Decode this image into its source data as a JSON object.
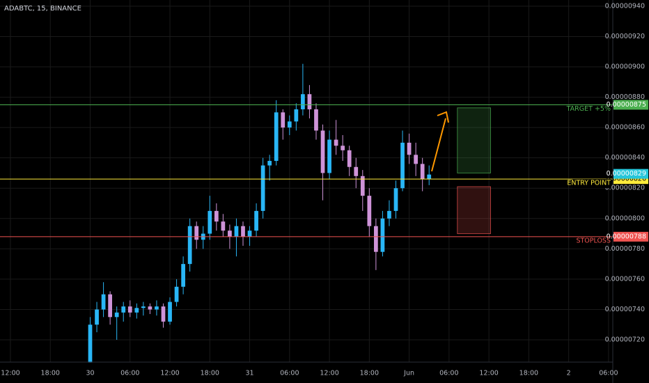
{
  "chart_data": {
    "type": "candlestick",
    "title": "ADABTC, 15, BINANCE",
    "up_color": "#29b6f6",
    "down_color": "#ce93d8",
    "grid": true,
    "xlim": [
      -13.57,
      78.64
    ],
    "ylim": [
      7.053e-06,
      9.441e-06
    ],
    "xticks": [
      {
        "value": -12,
        "label": "12:00"
      },
      {
        "value": -6,
        "label": "18:00"
      },
      {
        "value": 0,
        "label": "30"
      },
      {
        "value": 6,
        "label": "06:00"
      },
      {
        "value": 12,
        "label": "12:00"
      },
      {
        "value": 18,
        "label": "18:00"
      },
      {
        "value": 24,
        "label": "31"
      },
      {
        "value": 30,
        "label": "06:00"
      },
      {
        "value": 36,
        "label": "12:00"
      },
      {
        "value": 42,
        "label": "18:00"
      },
      {
        "value": 48,
        "label": "Jun"
      },
      {
        "value": 54,
        "label": "06:00"
      },
      {
        "value": 60,
        "label": "12:00"
      },
      {
        "value": 66,
        "label": "18:00"
      },
      {
        "value": 72,
        "label": "2"
      },
      {
        "value": 78,
        "label": "06:00"
      }
    ],
    "yticks": [
      {
        "value": 7.2e-06,
        "label": "0.00000720"
      },
      {
        "value": 7.4e-06,
        "label": "0.00000740"
      },
      {
        "value": 7.6e-06,
        "label": "0.00000760"
      },
      {
        "value": 7.8e-06,
        "label": "0.00000780"
      },
      {
        "value": 8e-06,
        "label": "0.00000800"
      },
      {
        "value": 8.2e-06,
        "label": "0.00000820"
      },
      {
        "value": 8.4e-06,
        "label": "0.00000840"
      },
      {
        "value": 8.6e-06,
        "label": "0.00000860"
      },
      {
        "value": 8.8e-06,
        "label": "0.00000880"
      },
      {
        "value": 9e-06,
        "label": "0.00000900"
      },
      {
        "value": 9.2e-06,
        "label": "0.00000920"
      },
      {
        "value": 9.4e-06,
        "label": "0.00000940"
      }
    ],
    "x": [
      0,
      1,
      2,
      3,
      4,
      5,
      6,
      7,
      8,
      9,
      10,
      11,
      12,
      13,
      14,
      15,
      16,
      17,
      18,
      19,
      20,
      21,
      22,
      23,
      24,
      25,
      26,
      27,
      28,
      29,
      30,
      31,
      32,
      33,
      34,
      35,
      36,
      37,
      38,
      39,
      40,
      41,
      42,
      43,
      44,
      45,
      46,
      47,
      48,
      49,
      50,
      51
    ],
    "open": [
      7.05e-06,
      7.3e-06,
      7.4e-06,
      7.5e-06,
      7.35e-06,
      7.38e-06,
      7.42e-06,
      7.38e-06,
      7.41e-06,
      7.42e-06,
      7.4e-06,
      7.42e-06,
      7.32e-06,
      7.45e-06,
      7.55e-06,
      7.7e-06,
      7.95e-06,
      7.86e-06,
      7.9e-06,
      8.05e-06,
      7.98e-06,
      7.92e-06,
      7.88e-06,
      7.95e-06,
      7.88e-06,
      7.92e-06,
      8.05e-06,
      8.35e-06,
      8.38e-06,
      8.7e-06,
      8.6e-06,
      8.64e-06,
      8.72e-06,
      8.82e-06,
      8.72e-06,
      8.58e-06,
      8.3e-06,
      8.52e-06,
      8.48e-06,
      8.45e-06,
      8.34e-06,
      8.28e-06,
      8.15e-06,
      7.95e-06,
      7.78e-06,
      8e-06,
      8.05e-06,
      8.2e-06,
      8.5e-06,
      8.42e-06,
      8.36e-06,
      8.26e-06
    ],
    "high": [
      7.35e-06,
      7.45e-06,
      7.58e-06,
      7.52e-06,
      7.42e-06,
      7.45e-06,
      7.46e-06,
      7.44e-06,
      7.45e-06,
      7.44e-06,
      7.46e-06,
      7.44e-06,
      7.48e-06,
      7.6e-06,
      7.75e-06,
      8e-06,
      7.98e-06,
      7.95e-06,
      8.15e-06,
      8.1e-06,
      8.03e-06,
      7.96e-06,
      8e-06,
      7.98e-06,
      7.95e-06,
      8.1e-06,
      8.4e-06,
      8.42e-06,
      8.78e-06,
      8.72e-06,
      8.68e-06,
      8.76e-06,
      9.02e-06,
      8.88e-06,
      8.76e-06,
      8.62e-06,
      8.58e-06,
      8.65e-06,
      8.55e-06,
      8.48e-06,
      8.4e-06,
      8.32e-06,
      8.2e-06,
      8e-06,
      8.05e-06,
      8.12e-06,
      8.25e-06,
      8.58e-06,
      8.56e-06,
      8.5e-06,
      8.4e-06,
      8.35e-06
    ],
    "low": [
      7.05e-06,
      7.25e-06,
      7.35e-06,
      7.3e-06,
      7.2e-06,
      7.32e-06,
      7.35e-06,
      7.34e-06,
      7.36e-06,
      7.37e-06,
      7.36e-06,
      7.28e-06,
      7.3e-06,
      7.42e-06,
      7.5e-06,
      7.65e-06,
      7.8e-06,
      7.8e-06,
      7.86e-06,
      7.92e-06,
      7.88e-06,
      7.8e-06,
      7.75e-06,
      7.82e-06,
      7.82e-06,
      7.88e-06,
      8e-06,
      8.25e-06,
      8.35e-06,
      8.52e-06,
      8.55e-06,
      8.58e-06,
      8.68e-06,
      8.66e-06,
      8.52e-06,
      8.12e-06,
      8.26e-06,
      8.42e-06,
      8.38e-06,
      8.28e-06,
      8.2e-06,
      8.05e-06,
      7.88e-06,
      7.66e-06,
      7.75e-06,
      7.95e-06,
      8e-06,
      8.18e-06,
      8.36e-06,
      8.28e-06,
      8.18e-06,
      8.22e-06
    ],
    "close": [
      7.3e-06,
      7.4e-06,
      7.5e-06,
      7.35e-06,
      7.38e-06,
      7.42e-06,
      7.38e-06,
      7.41e-06,
      7.42e-06,
      7.4e-06,
      7.42e-06,
      7.32e-06,
      7.45e-06,
      7.55e-06,
      7.7e-06,
      7.95e-06,
      7.86e-06,
      7.9e-06,
      8.05e-06,
      7.98e-06,
      7.92e-06,
      7.88e-06,
      7.95e-06,
      7.88e-06,
      7.92e-06,
      8.05e-06,
      8.35e-06,
      8.38e-06,
      8.7e-06,
      8.6e-06,
      8.64e-06,
      8.72e-06,
      8.82e-06,
      8.72e-06,
      8.58e-06,
      8.3e-06,
      8.52e-06,
      8.48e-06,
      8.45e-06,
      8.34e-06,
      8.28e-06,
      8.15e-06,
      7.95e-06,
      7.78e-06,
      8e-06,
      8.05e-06,
      8.2e-06,
      8.5e-06,
      8.42e-06,
      8.36e-06,
      8.26e-06,
      8.29e-06
    ],
    "levels": [
      {
        "name": "TARGET +5%",
        "value": 8.75e-06,
        "value_label": "0.00000875",
        "color": "#4caf50"
      },
      {
        "name": "ENTRY POINT",
        "value": 8.26e-06,
        "value_label": "0.00000826",
        "color": "#ffeb3b"
      },
      {
        "name": "STOPLOSS",
        "value": 7.88e-06,
        "value_label": "0.00000788",
        "color": "#ef5350"
      }
    ],
    "last_price": {
      "value": 8.29e-06,
      "label": "0.00000829",
      "color": "#26c6da"
    },
    "boxes": [
      {
        "x": [
          55.25,
          60.25
        ],
        "top": 8.73e-06,
        "bottom": 8.3e-06,
        "color": "#4caf50"
      },
      {
        "x": [
          55.25,
          60.25
        ],
        "top": 8.21e-06,
        "bottom": 7.9e-06,
        "color": "#ef5350"
      }
    ]
  }
}
